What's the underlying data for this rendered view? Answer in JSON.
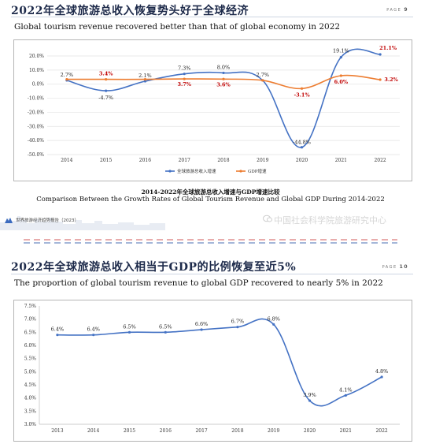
{
  "page1": {
    "title": "2022年全球旅游总收入恢复势头好于全球经济",
    "page_word": "PAGE",
    "page_number": "9",
    "subtitle": "Global tourism revenue recovered better than that of global economy in 2022",
    "caption_cn": "2014-2022年全球旅游总收入增速与GDP增速比较",
    "caption_en": "Comparison Between the Growth Rates of Global Tourism Revenue and Global GDP During 2014-2022",
    "footer_report": "世界旅游经济趋势报告（2023）",
    "watermark": "中国社会科学院旅游研究中心"
  },
  "page2": {
    "title": "2022年全球旅游总收入相当于GDP的比例恢复至近5%",
    "page_word": "PAGE",
    "page_number": "10",
    "subtitle": "The proportion of global tourism revenue to global GDP recovered to nearly 5% in 2022"
  },
  "colors": {
    "tourism_line": "#4472c4",
    "gdp_line": "#ed7d31",
    "gdp_label": "#c00000",
    "highlight_label": "#c00000"
  },
  "chart_data": [
    {
      "type": "line",
      "x": [
        "2014",
        "2015",
        "2016",
        "2017",
        "2018",
        "2019",
        "2020",
        "2021",
        "2022"
      ],
      "yticks": [
        "20.0%",
        "10.0%",
        "0.0%",
        "-10.0%",
        "-20.0%",
        "-30.0%",
        "-40.0%",
        "-50.0%"
      ],
      "ylim": [
        -50,
        20
      ],
      "grid": true,
      "legend_position": "bottom",
      "series": [
        {
          "name": "全球旅游总收入增速",
          "values": [
            2.7,
            -4.7,
            2.1,
            7.3,
            8.0,
            2.7,
            -44.8,
            19.1,
            21.1
          ],
          "labels": [
            "2.7%",
            "-4.7%",
            "2.1%",
            "7.3%",
            "8.0%",
            "2.7%",
            "-44.8%",
            "19.1%",
            "21.1%"
          ]
        },
        {
          "name": "GDP增速",
          "values": [
            3.4,
            3.4,
            3.4,
            3.7,
            3.6,
            2.7,
            -3.1,
            6.0,
            3.2
          ],
          "labels": [
            "",
            "3.4%",
            "",
            "3.7%",
            "3.6%",
            "",
            "-3.1%",
            "6.0%",
            "3.2%"
          ]
        }
      ]
    },
    {
      "type": "line",
      "x": [
        "2013",
        "2014",
        "2015",
        "2016",
        "2017",
        "2018",
        "2019",
        "2020",
        "2021",
        "2022"
      ],
      "yticks": [
        "7.5%",
        "7.0%",
        "6.5%",
        "6.0%",
        "5.5%",
        "5.0%",
        "4.5%",
        "4.0%",
        "3.5%",
        "3.0%"
      ],
      "ylim": [
        3.0,
        7.5
      ],
      "grid": false,
      "series": [
        {
          "name": "",
          "values": [
            6.4,
            6.4,
            6.5,
            6.5,
            6.6,
            6.7,
            6.8,
            3.9,
            4.1,
            4.8
          ],
          "labels": [
            "6.4%",
            "6.4%",
            "6.5%",
            "6.5%",
            "6.6%",
            "6.7%",
            "6.8%",
            "3.9%",
            "4.1%",
            "4.8%"
          ]
        }
      ]
    }
  ]
}
